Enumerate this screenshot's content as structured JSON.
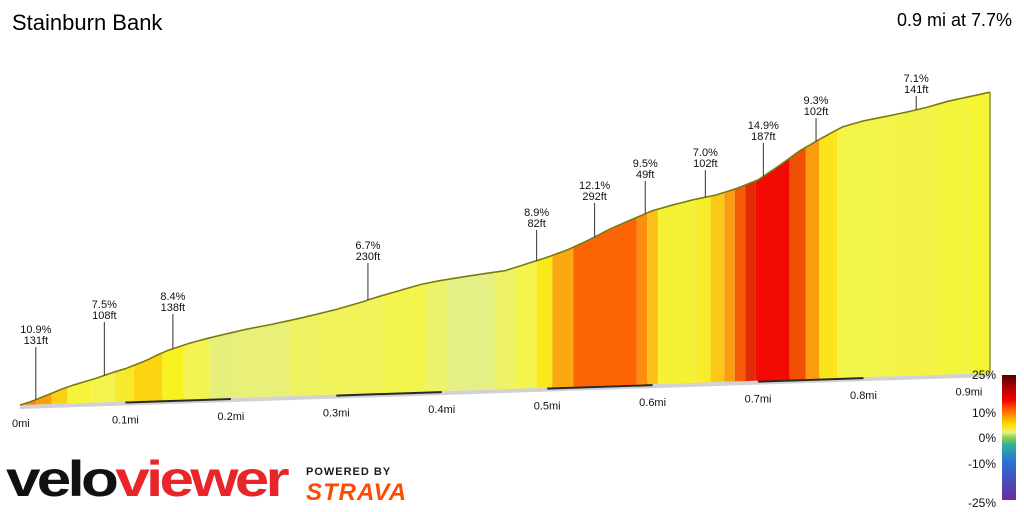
{
  "header": {
    "title": "Stainburn Bank",
    "summary": "0.9 mi at 7.7%"
  },
  "brand": {
    "logo_text": "veloviewer",
    "logo_part1": "velo",
    "logo_part2": "viewer",
    "powered_label": "POWERED BY",
    "powered_brand": "STRAVA"
  },
  "chart_data": {
    "type": "area",
    "x_unit": "mi",
    "x_ticks": [
      "0mi",
      "0.1mi",
      "0.2mi",
      "0.3mi",
      "0.4mi",
      "0.5mi",
      "0.6mi",
      "0.7mi",
      "0.8mi",
      "0.9mi"
    ],
    "x_total": 0.9,
    "profile": [
      [
        0.0,
        0.0
      ],
      [
        0.01,
        1.5
      ],
      [
        0.02,
        3.5
      ],
      [
        0.03,
        5.5
      ],
      [
        0.04,
        7.6
      ],
      [
        0.05,
        9.3
      ],
      [
        0.06,
        10.8
      ],
      [
        0.07,
        12.2
      ],
      [
        0.08,
        13.9
      ],
      [
        0.09,
        15.6
      ],
      [
        0.1,
        17.0
      ],
      [
        0.11,
        19.0
      ],
      [
        0.12,
        21.0
      ],
      [
        0.13,
        23.5
      ],
      [
        0.14,
        25.7
      ],
      [
        0.16,
        29.0
      ],
      [
        0.18,
        31.6
      ],
      [
        0.2,
        33.8
      ],
      [
        0.22,
        35.9
      ],
      [
        0.24,
        37.6
      ],
      [
        0.26,
        39.6
      ],
      [
        0.28,
        41.8
      ],
      [
        0.3,
        44.1
      ],
      [
        0.32,
        46.9
      ],
      [
        0.34,
        50.0
      ],
      [
        0.36,
        52.8
      ],
      [
        0.38,
        55.6
      ],
      [
        0.4,
        57.4
      ],
      [
        0.42,
        58.8
      ],
      [
        0.44,
        60.1
      ],
      [
        0.46,
        61.3
      ],
      [
        0.48,
        64.4
      ],
      [
        0.5,
        67.5
      ],
      [
        0.52,
        71.2
      ],
      [
        0.54,
        75.9
      ],
      [
        0.56,
        81.2
      ],
      [
        0.58,
        85.6
      ],
      [
        0.6,
        89.9
      ],
      [
        0.62,
        92.6
      ],
      [
        0.64,
        95.0
      ],
      [
        0.66,
        96.9
      ],
      [
        0.68,
        100.0
      ],
      [
        0.7,
        104.0
      ],
      [
        0.72,
        111.0
      ],
      [
        0.74,
        118.5
      ],
      [
        0.76,
        124.5
      ],
      [
        0.78,
        130.0
      ],
      [
        0.8,
        132.8
      ],
      [
        0.82,
        134.6
      ],
      [
        0.84,
        136.5
      ],
      [
        0.86,
        138.7
      ],
      [
        0.88,
        141.5
      ],
      [
        0.9,
        143.5
      ],
      [
        0.92,
        145.5
      ]
    ],
    "segments": [
      {
        "x0": 0.0,
        "x1": 0.015,
        "color": "#f97f0a"
      },
      {
        "x0": 0.015,
        "x1": 0.03,
        "color": "#fb9f0c"
      },
      {
        "x0": 0.03,
        "x1": 0.045,
        "color": "#fbcf14"
      },
      {
        "x0": 0.045,
        "x1": 0.068,
        "color": "#f6f43a"
      },
      {
        "x0": 0.068,
        "x1": 0.09,
        "color": "#f3f34c"
      },
      {
        "x0": 0.09,
        "x1": 0.108,
        "color": "#f6ea2e"
      },
      {
        "x0": 0.108,
        "x1": 0.135,
        "color": "#fbd412"
      },
      {
        "x0": 0.135,
        "x1": 0.155,
        "color": "#f8f21e"
      },
      {
        "x0": 0.155,
        "x1": 0.18,
        "color": "#f3f354"
      },
      {
        "x0": 0.18,
        "x1": 0.205,
        "color": "#e6ee7c"
      },
      {
        "x0": 0.205,
        "x1": 0.255,
        "color": "#e9f078"
      },
      {
        "x0": 0.255,
        "x1": 0.285,
        "color": "#eef260"
      },
      {
        "x0": 0.285,
        "x1": 0.345,
        "color": "#f1f35a"
      },
      {
        "x0": 0.345,
        "x1": 0.385,
        "color": "#f3f54c"
      },
      {
        "x0": 0.385,
        "x1": 0.405,
        "color": "#ecf26a"
      },
      {
        "x0": 0.405,
        "x1": 0.45,
        "color": "#e4ef86"
      },
      {
        "x0": 0.45,
        "x1": 0.47,
        "color": "#eef266"
      },
      {
        "x0": 0.47,
        "x1": 0.49,
        "color": "#f3f44c"
      },
      {
        "x0": 0.49,
        "x1": 0.505,
        "color": "#fbe81a"
      },
      {
        "x0": 0.505,
        "x1": 0.525,
        "color": "#fba812"
      },
      {
        "x0": 0.525,
        "x1": 0.585,
        "color": "#fc6406"
      },
      {
        "x0": 0.585,
        "x1": 0.595,
        "color": "#fb8e0c"
      },
      {
        "x0": 0.595,
        "x1": 0.605,
        "color": "#fbc018"
      },
      {
        "x0": 0.605,
        "x1": 0.64,
        "color": "#f5f236"
      },
      {
        "x0": 0.64,
        "x1": 0.655,
        "color": "#f7ed2a"
      },
      {
        "x0": 0.655,
        "x1": 0.668,
        "color": "#fbc814"
      },
      {
        "x0": 0.668,
        "x1": 0.678,
        "color": "#fb9c10"
      },
      {
        "x0": 0.678,
        "x1": 0.688,
        "color": "#f55a08"
      },
      {
        "x0": 0.688,
        "x1": 0.698,
        "color": "#e02c04"
      },
      {
        "x0": 0.698,
        "x1": 0.73,
        "color": "#f40a04"
      },
      {
        "x0": 0.73,
        "x1": 0.745,
        "color": "#f05006"
      },
      {
        "x0": 0.745,
        "x1": 0.758,
        "color": "#fb9c10"
      },
      {
        "x0": 0.758,
        "x1": 0.775,
        "color": "#fbe41a"
      },
      {
        "x0": 0.775,
        "x1": 0.828,
        "color": "#f3f44a"
      },
      {
        "x0": 0.828,
        "x1": 0.872,
        "color": "#f2f346"
      },
      {
        "x0": 0.872,
        "x1": 0.9,
        "color": "#f3f43c"
      },
      {
        "x0": 0.9,
        "x1": 0.92,
        "color": "#f5f534"
      }
    ],
    "annotations": [
      {
        "x": 0.015,
        "grade": "10.9%",
        "length": "131ft"
      },
      {
        "x": 0.08,
        "grade": "7.5%",
        "length": "108ft"
      },
      {
        "x": 0.145,
        "grade": "8.4%",
        "length": "138ft"
      },
      {
        "x": 0.33,
        "grade": "6.7%",
        "length": "230ft"
      },
      {
        "x": 0.49,
        "grade": "8.9%",
        "length": "82ft"
      },
      {
        "x": 0.545,
        "grade": "12.1%",
        "length": "292ft"
      },
      {
        "x": 0.593,
        "grade": "9.5%",
        "length": "49ft"
      },
      {
        "x": 0.65,
        "grade": "7.0%",
        "length": "102ft"
      },
      {
        "x": 0.705,
        "grade": "14.9%",
        "length": "187ft"
      },
      {
        "x": 0.755,
        "grade": "9.3%",
        "length": "102ft"
      },
      {
        "x": 0.85,
        "grade": "7.1%",
        "length": "141ft"
      }
    ],
    "legend": {
      "labels": [
        "25%",
        "10%",
        "0%",
        "-10%",
        "-25%"
      ],
      "values": [
        25,
        10,
        0,
        -10,
        -25
      ],
      "gradient_stops": [
        {
          "grade": 25,
          "color": "#5a0000"
        },
        {
          "grade": 20,
          "color": "#b00000"
        },
        {
          "grade": 15,
          "color": "#f20000"
        },
        {
          "grade": 10,
          "color": "#ff7a00"
        },
        {
          "grade": 5,
          "color": "#ffe000"
        },
        {
          "grade": 2,
          "color": "#e8f08a"
        },
        {
          "grade": 0,
          "color": "#8ed24a"
        },
        {
          "grade": -3,
          "color": "#2fb0a0"
        },
        {
          "grade": -10,
          "color": "#2a6fd6"
        },
        {
          "grade": -25,
          "color": "#6a2a9e"
        }
      ]
    },
    "colors": {
      "outline": "#7a7a12",
      "pointer": "#333333",
      "base_edge": "#d2d2d2",
      "base_dark": "#2a2a2a"
    }
  }
}
